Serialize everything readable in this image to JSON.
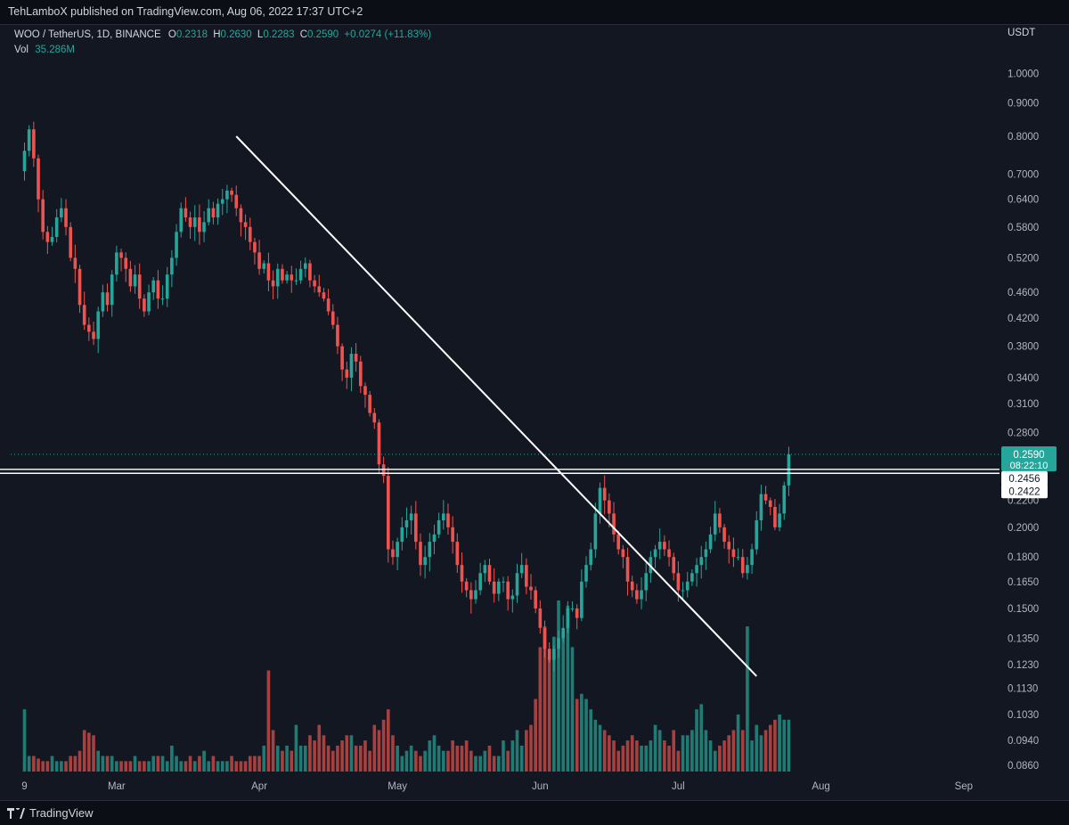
{
  "header": {
    "publisher_text": "TehLamboX published on TradingView.com, Aug 06, 2022 17:37 UTC+2"
  },
  "legend": {
    "symbol": "WOO / TetherUS, 1D, BINANCE",
    "o_label": "O",
    "o_value": "0.2318",
    "h_label": "H",
    "h_value": "0.2630",
    "l_label": "L",
    "l_value": "0.2283",
    "c_label": "C",
    "c_value": "0.2590",
    "change": "+0.0274 (+11.83%)",
    "vol_label": "Vol",
    "vol_value": "35.286M"
  },
  "footer": {
    "brand": "TradingView"
  },
  "colors": {
    "background": "#131722",
    "up": "#26a69a",
    "down": "#ef5350",
    "up_volume": "#1f7c74",
    "down_volume": "#a7403e",
    "trendline": "#ffffff",
    "hline": "#ffffff",
    "price_dotted": "#26a69a"
  },
  "chart_data": {
    "type": "candlestick",
    "title": "WOO / TetherUS, 1D, BINANCE",
    "scale": "log",
    "ylabel": "USDT",
    "ylim": [
      0.081,
      1.08
    ],
    "y_ticks": [
      "1.0000",
      "0.9000",
      "0.8000",
      "0.7000",
      "0.6400",
      "0.5800",
      "0.5200",
      "0.4600",
      "0.4200",
      "0.3800",
      "0.3400",
      "0.3100",
      "0.2800",
      "0.2200",
      "0.2000",
      "0.1800",
      "0.1650",
      "0.1500",
      "0.1350",
      "0.1230",
      "0.1130",
      "0.1030",
      "0.0940",
      "0.0860"
    ],
    "x_ticks": [
      {
        "label": "9",
        "date": "2022-02-09"
      },
      {
        "label": "Mar",
        "date": "2022-03-01"
      },
      {
        "label": "Apr",
        "date": "2022-04-01"
      },
      {
        "label": "May",
        "date": "2022-05-01"
      },
      {
        "label": "Jun",
        "date": "2022-06-01"
      },
      {
        "label": "Jul",
        "date": "2022-07-01"
      },
      {
        "label": "Aug",
        "date": "2022-08-01"
      },
      {
        "label": "Sep",
        "date": "2022-09-01"
      }
    ],
    "x_range": [
      "2022-02-06",
      "2022-09-08"
    ],
    "first_date": "2022-02-09",
    "last_price": {
      "value": "0.2590",
      "countdown": "08:22:10"
    },
    "horizontal_levels": [
      {
        "price": 0.2456,
        "label": "0.2456"
      },
      {
        "price": 0.2422,
        "label": "0.2422"
      }
    ],
    "trendline": [
      {
        "date": "2022-03-27",
        "price": 0.8
      },
      {
        "date": "2022-07-18",
        "price": 0.118
      }
    ],
    "closes": [
      0.76,
      0.82,
      0.74,
      0.64,
      0.57,
      0.55,
      0.56,
      0.6,
      0.62,
      0.58,
      0.52,
      0.5,
      0.44,
      0.41,
      0.4,
      0.39,
      0.43,
      0.46,
      0.44,
      0.49,
      0.53,
      0.52,
      0.5,
      0.47,
      0.49,
      0.45,
      0.43,
      0.46,
      0.48,
      0.45,
      0.45,
      0.49,
      0.52,
      0.57,
      0.62,
      0.6,
      0.58,
      0.6,
      0.57,
      0.59,
      0.62,
      0.6,
      0.63,
      0.64,
      0.66,
      0.65,
      0.62,
      0.59,
      0.58,
      0.55,
      0.53,
      0.5,
      0.51,
      0.48,
      0.47,
      0.5,
      0.48,
      0.49,
      0.48,
      0.48,
      0.5,
      0.51,
      0.48,
      0.47,
      0.46,
      0.45,
      0.43,
      0.41,
      0.38,
      0.35,
      0.34,
      0.37,
      0.36,
      0.33,
      0.32,
      0.3,
      0.29,
      0.25,
      0.24,
      0.185,
      0.18,
      0.19,
      0.2,
      0.205,
      0.21,
      0.19,
      0.175,
      0.18,
      0.19,
      0.195,
      0.205,
      0.21,
      0.2,
      0.19,
      0.175,
      0.165,
      0.16,
      0.155,
      0.16,
      0.17,
      0.175,
      0.165,
      0.158,
      0.165,
      0.165,
      0.155,
      0.157,
      0.17,
      0.175,
      0.162,
      0.16,
      0.15,
      0.14,
      0.13,
      0.125,
      0.13,
      0.135,
      0.14,
      0.15,
      0.15,
      0.145,
      0.165,
      0.175,
      0.185,
      0.21,
      0.23,
      0.22,
      0.21,
      0.195,
      0.185,
      0.18,
      0.165,
      0.16,
      0.155,
      0.16,
      0.17,
      0.18,
      0.185,
      0.19,
      0.185,
      0.18,
      0.17,
      0.16,
      0.16,
      0.165,
      0.17,
      0.175,
      0.18,
      0.185,
      0.195,
      0.21,
      0.2,
      0.19,
      0.185,
      0.18,
      0.18,
      0.17,
      0.175,
      0.185,
      0.205,
      0.225,
      0.22,
      0.215,
      0.2,
      0.21,
      0.232,
      0.259
    ],
    "volumes": [
      12,
      3,
      3,
      2.5,
      2,
      2,
      3,
      2,
      2,
      2,
      3,
      3,
      4,
      8,
      7.5,
      7,
      4,
      3,
      3,
      3,
      2,
      2,
      2,
      2,
      3,
      2,
      2,
      2,
      3,
      3,
      3,
      2,
      5,
      3,
      2,
      2,
      3,
      2,
      3,
      4,
      2,
      3,
      2,
      2,
      2,
      3,
      2,
      2,
      2,
      3,
      3,
      3,
      5,
      19.5,
      8,
      5,
      4,
      5,
      4,
      9,
      5,
      5,
      7,
      6,
      9,
      7,
      5,
      4,
      5,
      6,
      7,
      7,
      5,
      5,
      6,
      4,
      9,
      8,
      10,
      12,
      7,
      5,
      3,
      4,
      5,
      4,
      3,
      4,
      6,
      7,
      5,
      4,
      4,
      6,
      5,
      5,
      6,
      4,
      3,
      3,
      4,
      5,
      3,
      3,
      6,
      4,
      6,
      8,
      5,
      8,
      9,
      14,
      24,
      28,
      22,
      26,
      33,
      27,
      32,
      24,
      14,
      15,
      14,
      12,
      10,
      9,
      8,
      7,
      6,
      4,
      5,
      6,
      7,
      6,
      5,
      5,
      6,
      9,
      8,
      6,
      5,
      8,
      4,
      7,
      7,
      8,
      12,
      13,
      8,
      6,
      4,
      5,
      6,
      7,
      8,
      11,
      8,
      28,
      6,
      9,
      7,
      8,
      9,
      10,
      11,
      10,
      10
    ]
  }
}
